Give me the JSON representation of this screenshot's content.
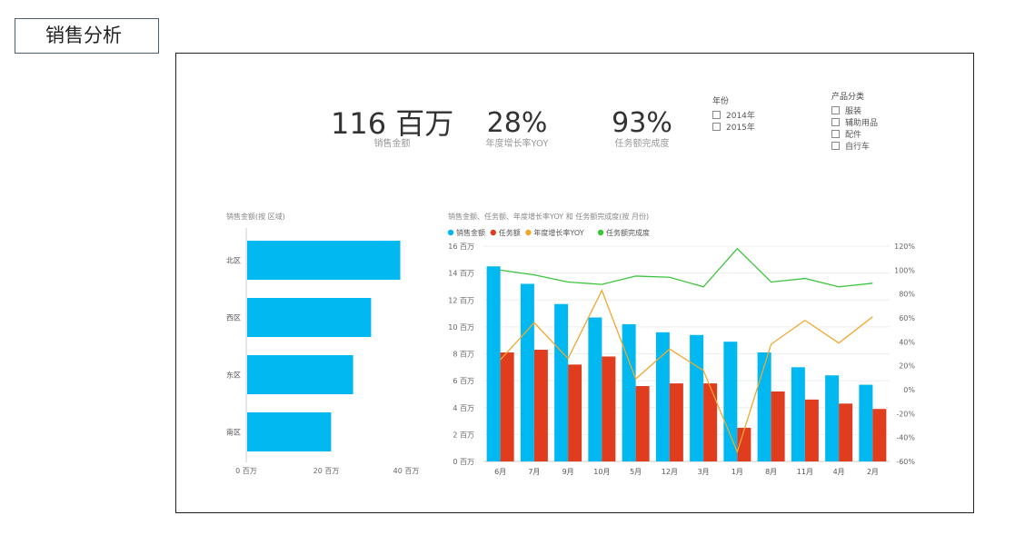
{
  "page": {
    "title": "销售分析"
  },
  "kpis": {
    "sales": {
      "value": "116 百万",
      "label": "销售金额"
    },
    "yoy": {
      "value": "28%",
      "label": "年度增长率YOY"
    },
    "completion": {
      "value": "93%",
      "label": "任务额完成度"
    }
  },
  "slicers": {
    "year": {
      "title": "年份",
      "items": [
        "2014年",
        "2015年"
      ]
    },
    "category": {
      "title": "产品分类",
      "items": [
        "服装",
        "辅助用品",
        "配件",
        "自行车"
      ]
    }
  },
  "chart_data": [
    {
      "type": "bar",
      "orientation": "horizontal",
      "title": "销售金额(按 区域)",
      "categories": [
        "北区",
        "西区",
        "东区",
        "南区"
      ],
      "values": [
        38.3,
        31,
        26.5,
        21
      ],
      "unit": "百万",
      "xlim": [
        0,
        40
      ],
      "xticks": [
        "0 百万",
        "20 百万",
        "40 百万"
      ],
      "colors": {
        "bar": "#01b8f0"
      }
    },
    {
      "type": "bar",
      "title": "销售金额、任务额、年度增长率YOY 和 任务额完成度(按 月份)",
      "categories": [
        "6月",
        "7月",
        "9月",
        "10月",
        "5月",
        "12月",
        "3月",
        "1月",
        "8月",
        "11月",
        "4月",
        "2月"
      ],
      "series": [
        {
          "name": "销售金额",
          "type": "bar",
          "axis": "left",
          "color": "#01b8f0",
          "values": [
            14.5,
            13.2,
            11.7,
            10.7,
            10.2,
            9.6,
            9.4,
            8.9,
            8.1,
            7.0,
            6.4,
            5.7
          ]
        },
        {
          "name": "任务额",
          "type": "bar",
          "axis": "left",
          "color": "#e03c1e",
          "values": [
            8.1,
            8.3,
            7.2,
            7.8,
            5.6,
            5.8,
            5.8,
            2.5,
            5.2,
            4.6,
            4.3,
            3.9
          ]
        },
        {
          "name": "年度增长率YOY",
          "type": "line",
          "axis": "right",
          "color": "#f0a830",
          "values": [
            25,
            56,
            26,
            83,
            9,
            34,
            16,
            -52,
            38,
            58,
            39,
            61
          ]
        },
        {
          "name": "任务额完成度",
          "type": "line",
          "axis": "right",
          "color": "#3cc43c",
          "values": [
            100,
            96,
            90,
            88,
            95,
            94,
            86,
            118,
            90,
            93,
            86,
            89
          ]
        }
      ],
      "ylim_left": [
        0,
        16
      ],
      "yticks_left": [
        "0 百万",
        "2 百万",
        "4 百万",
        "6 百万",
        "8 百万",
        "10 百万",
        "12 百万",
        "14 百万",
        "16 百万"
      ],
      "ylim_right": [
        -60,
        120
      ],
      "yticks_right": [
        "-60%",
        "-40%",
        "-20%",
        "0%",
        "20%",
        "40%",
        "60%",
        "80%",
        "100%",
        "120%"
      ],
      "legend_position": "top-left"
    }
  ]
}
